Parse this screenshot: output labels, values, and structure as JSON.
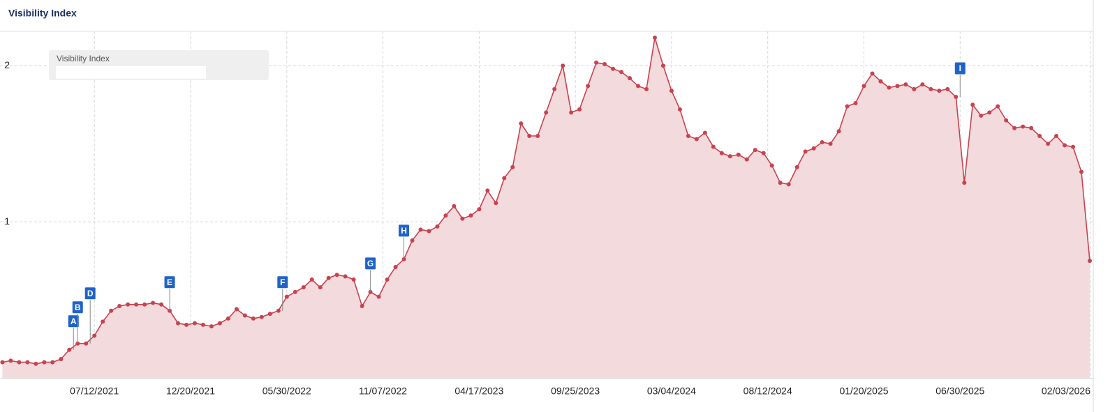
{
  "chart_data": {
    "type": "line",
    "title": "Visibility Index",
    "x": [
      "02/08/2021",
      "02/22/2021",
      "03/08/2021",
      "03/22/2021",
      "04/05/2021",
      "04/19/2021",
      "05/03/2021",
      "05/17/2021",
      "05/31/2021",
      "06/14/2021",
      "06/28/2021",
      "07/12/2021",
      "07/26/2021",
      "08/09/2021",
      "08/23/2021",
      "09/06/2021",
      "09/20/2021",
      "10/04/2021",
      "10/18/2021",
      "11/01/2021",
      "11/15/2021",
      "11/29/2021",
      "12/13/2021",
      "12/27/2021",
      "01/10/2022",
      "01/24/2022",
      "02/07/2022",
      "02/21/2022",
      "03/07/2022",
      "03/21/2022",
      "04/04/2022",
      "04/18/2022",
      "05/02/2022",
      "05/16/2022",
      "05/30/2022",
      "06/13/2022",
      "06/27/2022",
      "07/11/2022",
      "07/25/2022",
      "08/08/2022",
      "08/22/2022",
      "09/05/2022",
      "09/19/2022",
      "10/03/2022",
      "10/17/2022",
      "10/31/2022",
      "11/14/2022",
      "11/28/2022",
      "12/12/2022",
      "12/26/2022",
      "01/09/2023",
      "01/23/2023",
      "02/06/2023",
      "02/20/2023",
      "03/06/2023",
      "03/20/2023",
      "04/03/2023",
      "04/17/2023",
      "05/01/2023",
      "05/15/2023",
      "05/29/2023",
      "06/12/2023",
      "06/26/2023",
      "07/10/2023",
      "07/24/2023",
      "08/07/2023",
      "08/21/2023",
      "09/04/2023",
      "09/18/2023",
      "10/02/2023",
      "10/16/2023",
      "10/30/2023",
      "11/13/2023",
      "11/27/2023",
      "12/11/2023",
      "12/25/2023",
      "01/08/2024",
      "01/22/2024",
      "02/05/2024",
      "02/19/2024",
      "03/04/2024",
      "03/18/2024",
      "04/01/2024",
      "04/15/2024",
      "04/29/2024",
      "05/13/2024",
      "05/27/2024",
      "06/10/2024",
      "06/24/2024",
      "07/08/2024",
      "07/22/2024",
      "08/05/2024",
      "08/19/2024",
      "09/02/2024",
      "09/16/2024",
      "09/30/2024",
      "10/14/2024",
      "10/28/2024",
      "11/11/2024",
      "11/25/2024",
      "12/09/2024",
      "12/23/2024",
      "01/06/2025",
      "01/20/2025",
      "02/03/2025",
      "02/17/2025",
      "03/03/2025",
      "03/17/2025",
      "03/31/2025",
      "04/14/2025",
      "04/28/2025",
      "05/12/2025",
      "05/26/2025",
      "06/09/2025",
      "06/23/2025",
      "07/07/2025",
      "07/21/2025",
      "08/04/2025",
      "08/18/2025",
      "09/01/2025",
      "09/15/2025",
      "09/29/2025",
      "10/13/2025",
      "10/27/2025",
      "11/10/2025",
      "11/24/2025",
      "12/08/2025",
      "12/22/2025",
      "01/05/2026",
      "01/19/2026",
      "02/02/2026"
    ],
    "series": [
      {
        "name": "Visibility Index",
        "color": "#c8424f",
        "fill": "#f2dadd",
        "values": [
          0.1,
          0.11,
          0.1,
          0.1,
          0.09,
          0.1,
          0.1,
          0.12,
          0.18,
          0.22,
          0.22,
          0.27,
          0.36,
          0.43,
          0.46,
          0.47,
          0.47,
          0.47,
          0.48,
          0.47,
          0.43,
          0.35,
          0.34,
          0.35,
          0.34,
          0.33,
          0.35,
          0.38,
          0.44,
          0.4,
          0.38,
          0.39,
          0.41,
          0.43,
          0.52,
          0.55,
          0.58,
          0.63,
          0.58,
          0.64,
          0.66,
          0.65,
          0.63,
          0.46,
          0.55,
          0.52,
          0.63,
          0.71,
          0.76,
          0.88,
          0.95,
          0.94,
          0.97,
          1.04,
          1.1,
          1.02,
          1.04,
          1.08,
          1.2,
          1.12,
          1.28,
          1.35,
          1.63,
          1.55,
          1.55,
          1.7,
          1.85,
          2.0,
          1.7,
          1.72,
          1.87,
          2.02,
          2.01,
          1.98,
          1.96,
          1.92,
          1.87,
          1.85,
          2.18,
          2.0,
          1.84,
          1.72,
          1.55,
          1.53,
          1.57,
          1.48,
          1.44,
          1.42,
          1.43,
          1.4,
          1.46,
          1.44,
          1.36,
          1.25,
          1.24,
          1.35,
          1.45,
          1.47,
          1.51,
          1.5,
          1.58,
          1.74,
          1.76,
          1.87,
          1.95,
          1.9,
          1.86,
          1.87,
          1.88,
          1.85,
          1.88,
          1.85,
          1.84,
          1.85,
          1.8,
          1.25,
          1.75,
          1.68,
          1.7,
          1.74,
          1.65,
          1.6,
          1.61,
          1.6,
          1.55,
          1.5,
          1.55,
          1.49,
          1.48,
          1.32,
          0.75
        ]
      }
    ],
    "xlim": [
      "02/04/2021",
      "02/02/2026"
    ],
    "xticks": [
      "07/12/2021",
      "12/20/2021",
      "05/30/2022",
      "11/07/2022",
      "04/17/2023",
      "09/25/2023",
      "03/04/2024",
      "08/12/2024",
      "01/20/2025",
      "06/30/2025",
      "02/03/2026"
    ],
    "ylim": [
      0,
      2.22
    ],
    "yticks": [
      1,
      2
    ],
    "grid": true,
    "annotations": [
      {
        "label": "A",
        "x": "06/07/2021"
      },
      {
        "label": "B",
        "x": "06/14/2021"
      },
      {
        "label": "D",
        "x": "07/05/2021"
      },
      {
        "label": "E",
        "x": "11/15/2021"
      },
      {
        "label": "F",
        "x": "05/23/2022"
      },
      {
        "label": "G",
        "x": "10/17/2022"
      },
      {
        "label": "H",
        "x": "12/12/2022"
      },
      {
        "label": "I",
        "x": "06/30/2025"
      }
    ]
  }
}
